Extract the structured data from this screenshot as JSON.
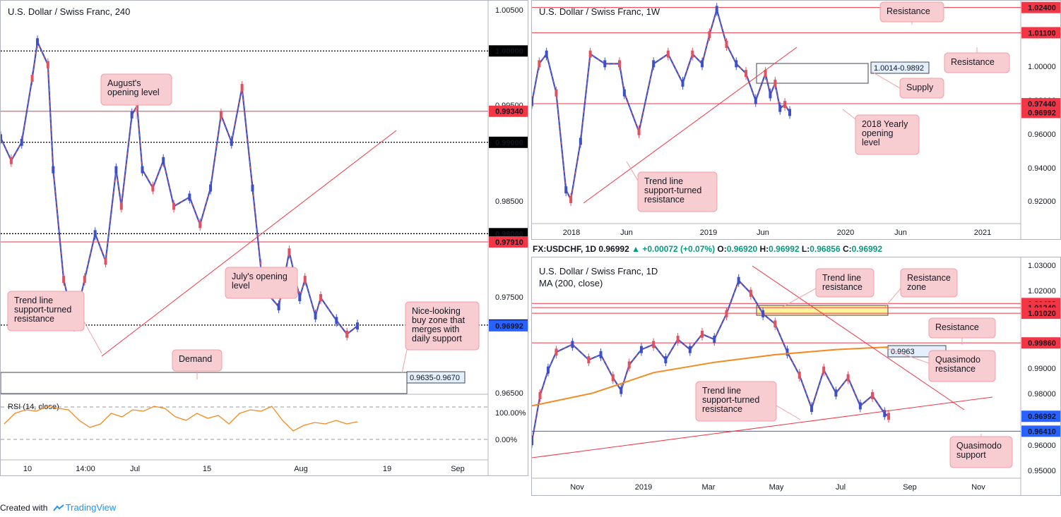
{
  "footer": {
    "created_with": "Created with",
    "brand": "TradingView"
  },
  "infobar": {
    "symbol": "FX:USDCHF, 1D",
    "price": "0.96992",
    "change": "+0.00072 (+0.07%)",
    "o_label": "O:",
    "o": "0.96920",
    "h_label": "H:",
    "h": "0.96992",
    "l_label": "L:",
    "l": "0.96856",
    "c_label": "C:",
    "c": "0.96992"
  },
  "chart_data": [
    {
      "type": "line",
      "title": "U.S. Dollar / Swiss Franc, 240",
      "x_ticks": [
        "10",
        "14:00",
        "Jul",
        "15",
        "Aug",
        "19",
        "Sep"
      ],
      "y_ticks": [
        "1.00500",
        "0.99500",
        "0.98500",
        "0.97500",
        "0.96500"
      ],
      "ylim": [
        0.9625,
        1.0055
      ],
      "price_path": {
        "x": [
          0,
          2,
          4,
          6,
          7,
          9,
          10,
          12,
          14,
          16,
          18,
          20,
          22,
          23,
          25,
          26,
          27,
          29,
          31,
          33,
          36,
          38,
          40,
          42,
          44,
          46,
          48,
          50,
          53,
          55,
          57,
          58,
          60,
          61,
          64,
          66,
          68
        ],
        "values": [
          0.9905,
          0.988,
          0.99,
          0.997,
          1.001,
          0.9985,
          0.987,
          0.975,
          0.97,
          0.975,
          0.98,
          0.977,
          0.987,
          0.983,
          0.993,
          0.994,
          0.987,
          0.985,
          0.988,
          0.983,
          0.984,
          0.981,
          0.985,
          0.993,
          0.99,
          0.996,
          0.985,
          0.974,
          0.972,
          0.978,
          0.973,
          0.975,
          0.971,
          0.973,
          0.9705,
          0.969,
          0.9699
        ]
      },
      "levels": [
        {
          "value": "1.00000",
          "style": "dotted",
          "label_color": "#000000"
        },
        {
          "value": "0.99340",
          "style": "red",
          "label_color": "#f23645"
        },
        {
          "value": "0.99000",
          "style": "dotted",
          "label_color": "#000000"
        },
        {
          "value": "0.98000",
          "style": "dotted",
          "label_color": "#000000"
        },
        {
          "value": "0.97910",
          "style": "red",
          "label_color": "#f23645"
        },
        {
          "value": "0.97000",
          "style": "dotted",
          "label_color": "#000000"
        },
        {
          "value": "0.96992",
          "style": "price",
          "label_color": "#2962ff"
        }
      ],
      "zone_label": "0.9635-0.9670",
      "annotations": [
        {
          "lines": [
            "August's",
            "opening level"
          ]
        },
        {
          "lines": [
            "July's opening",
            "level"
          ]
        },
        {
          "lines": [
            "Trend line",
            "support-turned",
            "resistance"
          ]
        },
        {
          "lines": [
            "Nice-looking",
            "buy zone that",
            "merges with",
            "daily support"
          ]
        },
        {
          "lines": [
            "Demand"
          ]
        }
      ],
      "rsi": {
        "label": "RSI (14, close)",
        "y_ticks": [
          "100.00%",
          "0.00%"
        ],
        "values": [
          40,
          55,
          60,
          58,
          65,
          62,
          60,
          45,
          35,
          40,
          55,
          50,
          60,
          58,
          65,
          62,
          50,
          45,
          55,
          48,
          52,
          40,
          55,
          60,
          58,
          65,
          45,
          30,
          38,
          42,
          40,
          45,
          40,
          43
        ]
      }
    },
    {
      "type": "line",
      "title": "U.S. Dollar / Swiss Franc, 1W",
      "x_ticks": [
        "2018",
        "Jun",
        "2019",
        "Jun",
        "2020",
        "Jun",
        "2021"
      ],
      "y_ticks": [
        "1.02000",
        "1.00000",
        "0.98000",
        "0.96000",
        "0.94000",
        "0.92000"
      ],
      "ylim": [
        0.9148,
        1.0275
      ],
      "price_path": {
        "x": [
          0,
          3,
          6,
          10,
          14,
          16,
          20,
          24,
          30,
          36,
          38,
          44,
          50,
          56,
          62,
          66,
          70,
          73,
          76,
          80,
          84,
          88,
          92,
          96,
          98,
          100,
          102,
          104,
          106
        ],
        "values": [
          0.975,
          0.995,
          1.0,
          0.98,
          0.93,
          0.925,
          0.955,
          1.0,
          0.995,
          0.995,
          0.98,
          0.96,
          0.995,
          1.0,
          0.985,
          1.0,
          0.995,
          1.01,
          1.023,
          1.005,
          0.995,
          0.99,
          0.976,
          0.99,
          0.979,
          0.985,
          0.972,
          0.974,
          0.9699
        ]
      },
      "levels": [
        {
          "value": "1.02400",
          "style": "red",
          "label_color": "#f23645"
        },
        {
          "value": "1.01100",
          "style": "red",
          "label_color": "#f23645"
        },
        {
          "value": "0.97440",
          "style": "red",
          "label_color": "#f23645"
        },
        {
          "value": "0.96992",
          "style": "price",
          "label_color": "#f23645"
        }
      ],
      "zone_label": "1.0014-0.9892",
      "annotations": [
        {
          "lines": [
            "Resistance"
          ]
        },
        {
          "lines": [
            "Resistance"
          ]
        },
        {
          "lines": [
            "Supply"
          ]
        },
        {
          "lines": [
            "2018 Yearly",
            "opening",
            "level"
          ]
        },
        {
          "lines": [
            "Trend line",
            "support-turned",
            "resistance"
          ]
        }
      ]
    },
    {
      "type": "line",
      "title": "U.S. Dollar / Swiss Franc, 1D",
      "subtitle": "MA (200, close)",
      "x_ticks": [
        "Nov",
        "2019",
        "Mar",
        "May",
        "Jul",
        "Sep",
        "Nov"
      ],
      "y_ticks": [
        "1.03000",
        "1.02000",
        "0.99000",
        "0.98000",
        "0.96000",
        "0.95000"
      ],
      "ylim": [
        0.946,
        1.032
      ],
      "price_path": {
        "x": [
          0,
          2,
          4,
          6,
          10,
          14,
          17,
          20,
          22,
          24,
          27,
          30,
          33,
          36,
          39,
          42,
          45,
          48,
          51,
          54,
          57,
          60,
          63,
          66,
          69,
          72,
          75,
          78,
          81,
          84,
          87,
          88
        ],
        "values": [
          0.96,
          0.978,
          0.988,
          0.995,
          0.998,
          0.992,
          0.994,
          0.985,
          0.98,
          0.99,
          0.996,
          0.998,
          0.992,
          1.0,
          0.996,
          1.002,
          1.0,
          1.01,
          1.023,
          1.018,
          1.01,
          1.006,
          0.995,
          0.986,
          0.973,
          0.988,
          0.979,
          0.985,
          0.974,
          0.978,
          0.971,
          0.9699
        ]
      },
      "ma200": {
        "x": [
          0,
          15,
          30,
          45,
          60,
          75,
          88
        ],
        "values": [
          0.974,
          0.979,
          0.987,
          0.991,
          0.994,
          0.996,
          0.997
        ]
      },
      "levels": [
        {
          "value": "1.01400",
          "style": "red",
          "label_color": "#f23645"
        },
        {
          "value": "1.01240",
          "style": "red",
          "label_color": "#f23645"
        },
        {
          "value": "1.01020",
          "style": "red",
          "label_color": "#f23645"
        },
        {
          "value": "0.99860",
          "style": "red",
          "label_color": "#f23645"
        },
        {
          "value": "0.96992",
          "style": "price",
          "label_color": "#2962ff"
        },
        {
          "value": "0.96410",
          "style": "blue",
          "label_color": "#2962ff"
        }
      ],
      "zone_label": "0.9963",
      "annotations": [
        {
          "lines": [
            "Trend line",
            "resistance"
          ]
        },
        {
          "lines": [
            "Resistance",
            "zone"
          ]
        },
        {
          "lines": [
            "Resistance"
          ]
        },
        {
          "lines": [
            "Quasimodo",
            "resistance"
          ]
        },
        {
          "lines": [
            "Trend line",
            "support-turned",
            "resistance"
          ]
        },
        {
          "lines": [
            "Quasimodo",
            "support"
          ]
        }
      ]
    }
  ]
}
